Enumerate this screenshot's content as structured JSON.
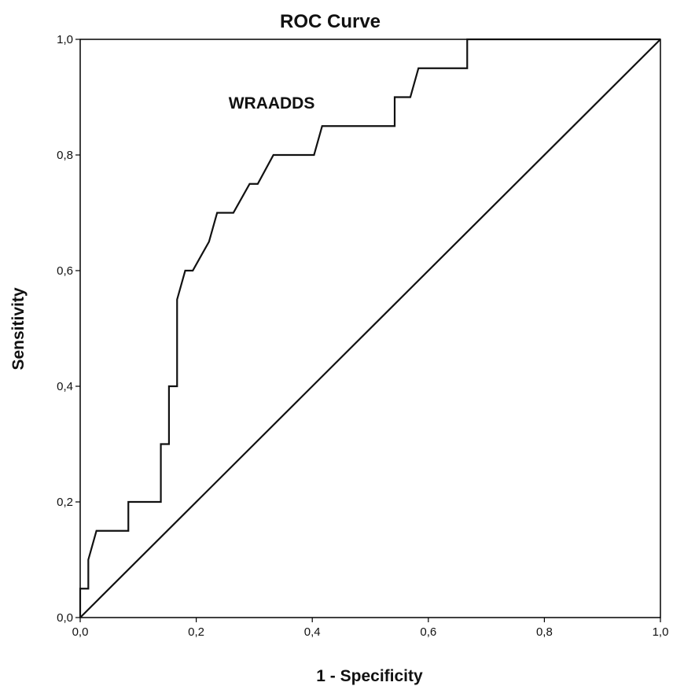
{
  "chart_data": {
    "type": "line",
    "title": "ROC Curve",
    "xlabel": "1 - Specificity",
    "ylabel": "Sensitivity",
    "xlim": [
      0,
      1
    ],
    "ylim": [
      0,
      1
    ],
    "xticks": [
      "0,0",
      "0,2",
      "0,4",
      "0,6",
      "0,8",
      "1,0"
    ],
    "yticks": [
      "0,0",
      "0,2",
      "0,4",
      "0,6",
      "0,8",
      "1,0"
    ],
    "xtick_values": [
      0,
      0.2,
      0.4,
      0.6,
      0.8,
      1.0
    ],
    "ytick_values": [
      0,
      0.2,
      0.4,
      0.6,
      0.8,
      1.0
    ],
    "grid": false,
    "annotations": [
      {
        "text": "WRAADDS",
        "x": 0.33,
        "y": 0.88
      }
    ],
    "series": [
      {
        "name": "WRAADDS",
        "x": [
          0,
          0,
          0.014,
          0.014,
          0.028,
          0.083,
          0.083,
          0.139,
          0.139,
          0.153,
          0.153,
          0.167,
          0.167,
          0.181,
          0.194,
          0.222,
          0.236,
          0.264,
          0.292,
          0.306,
          0.333,
          0.403,
          0.417,
          0.542,
          0.542,
          0.569,
          0.583,
          0.667,
          0.667,
          1.0
        ],
        "y": [
          0,
          0.05,
          0.05,
          0.1,
          0.15,
          0.15,
          0.2,
          0.2,
          0.3,
          0.3,
          0.4,
          0.4,
          0.55,
          0.6,
          0.6,
          0.65,
          0.7,
          0.7,
          0.75,
          0.75,
          0.8,
          0.8,
          0.85,
          0.85,
          0.9,
          0.9,
          0.95,
          0.95,
          1.0,
          1.0
        ]
      },
      {
        "name": "",
        "x": [
          0,
          1
        ],
        "y": [
          0,
          1
        ]
      }
    ]
  }
}
